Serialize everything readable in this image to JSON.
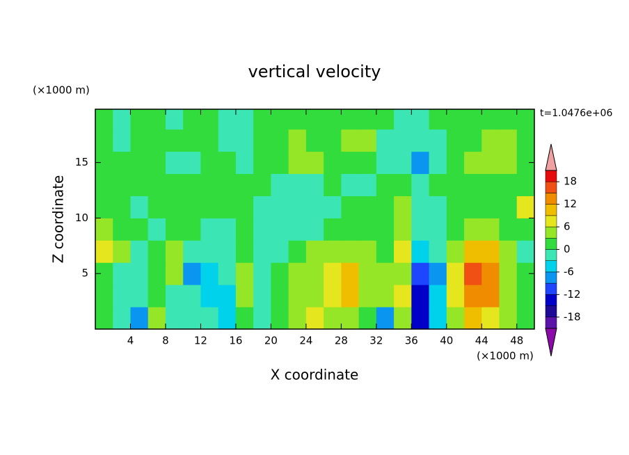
{
  "chart_data": {
    "type": "contour",
    "title": "vertical velocity",
    "x_label": "X coordinate",
    "y_label": "Z coordinate",
    "x_unit": "(×1000 m)",
    "y_unit": "(×1000 m)",
    "time_label": "t=1.0476e+06",
    "x": [
      1,
      3,
      5,
      7,
      9,
      11,
      13,
      15,
      17,
      19,
      21,
      23,
      25,
      27,
      29,
      31,
      33,
      35,
      37,
      39,
      41,
      43,
      45,
      47,
      49
    ],
    "y": [
      1,
      3,
      5,
      7,
      9,
      11,
      13,
      15,
      17,
      19
    ],
    "z": [
      [
        2,
        -2,
        -8,
        3,
        -1,
        -2,
        -3,
        -4,
        2,
        -1,
        1,
        4,
        7,
        4,
        4,
        1,
        -9,
        4,
        -13,
        -4,
        4,
        10,
        8,
        3,
        1
      ],
      [
        1,
        -1,
        -2,
        1,
        -1,
        -2,
        -6,
        -4,
        3,
        -1,
        2,
        4,
        4,
        8,
        11,
        3,
        5,
        7,
        -14,
        -6,
        6,
        14,
        12,
        4,
        1
      ],
      [
        1,
        -1,
        -2,
        1,
        4,
        -9,
        -4,
        -3,
        3,
        -1,
        1,
        3,
        4,
        6,
        9,
        5,
        3,
        3,
        -12,
        -7,
        6,
        15,
        12,
        5,
        1
      ],
      [
        6,
        4,
        -1,
        1,
        5,
        -2,
        -3,
        -3,
        1,
        -1,
        -1,
        2,
        3,
        4,
        4,
        5,
        2,
        6,
        -4,
        -3,
        4,
        10,
        9,
        3,
        -3
      ],
      [
        4,
        2,
        1,
        -1,
        2,
        1,
        -1,
        -2,
        1,
        -1,
        -2,
        -2,
        -1,
        1,
        1,
        2,
        1,
        5,
        -3,
        -1,
        2,
        5,
        4,
        2,
        1
      ],
      [
        1,
        1,
        -1,
        1,
        2,
        1,
        2,
        2,
        1,
        -1,
        -2,
        -3,
        -2,
        -1,
        1,
        1,
        1,
        4,
        -1,
        -1,
        1,
        2,
        1,
        2,
        7
      ],
      [
        1,
        2,
        1,
        1,
        1,
        2,
        1,
        1,
        1,
        1,
        -1,
        -1,
        -1,
        1,
        -1,
        -1,
        1,
        1,
        -1,
        1,
        1,
        1,
        2,
        2,
        1
      ],
      [
        1,
        1,
        1,
        1,
        -1,
        -2,
        1,
        1,
        -1,
        1,
        2,
        4,
        3,
        2,
        2,
        2,
        -1,
        -2,
        -7,
        -1,
        1,
        3,
        3,
        3,
        1
      ],
      [
        1,
        -1,
        1,
        1,
        1,
        1,
        1,
        -1,
        -1,
        1,
        2,
        4,
        2,
        2,
        4,
        4,
        -1,
        -2,
        -3,
        -1,
        1,
        2,
        3,
        3,
        1
      ],
      [
        1,
        -1,
        1,
        1,
        -1,
        1,
        1,
        -1,
        -1,
        1,
        1,
        2,
        1,
        1,
        1,
        2,
        1,
        -1,
        -1,
        1,
        1,
        1,
        1,
        1,
        1
      ]
    ],
    "xlim": [
      0,
      50
    ],
    "ylim": [
      0,
      19.8
    ],
    "xticks": [
      4,
      8,
      12,
      16,
      20,
      24,
      28,
      32,
      36,
      40,
      44,
      48
    ],
    "yticks": [
      5,
      10,
      15
    ],
    "colorbar": {
      "levels": [
        -21,
        -18,
        -15,
        -12,
        -9,
        -6,
        -3,
        0,
        3,
        6,
        9,
        12,
        15,
        18,
        21
      ],
      "colors": [
        "#5a14a8",
        "#1e0a96",
        "#0000c8",
        "#1e46ff",
        "#0a96f0",
        "#00d2eb",
        "#3ce6b4",
        "#32dc3c",
        "#96e628",
        "#e6e61e",
        "#f0be00",
        "#f08c00",
        "#f05014",
        "#e60a0a"
      ],
      "under_color": "#8c0aaa",
      "over_color": "#f0a0a0",
      "ticks": [
        -18,
        -12,
        -6,
        0,
        6,
        12,
        18
      ]
    }
  }
}
